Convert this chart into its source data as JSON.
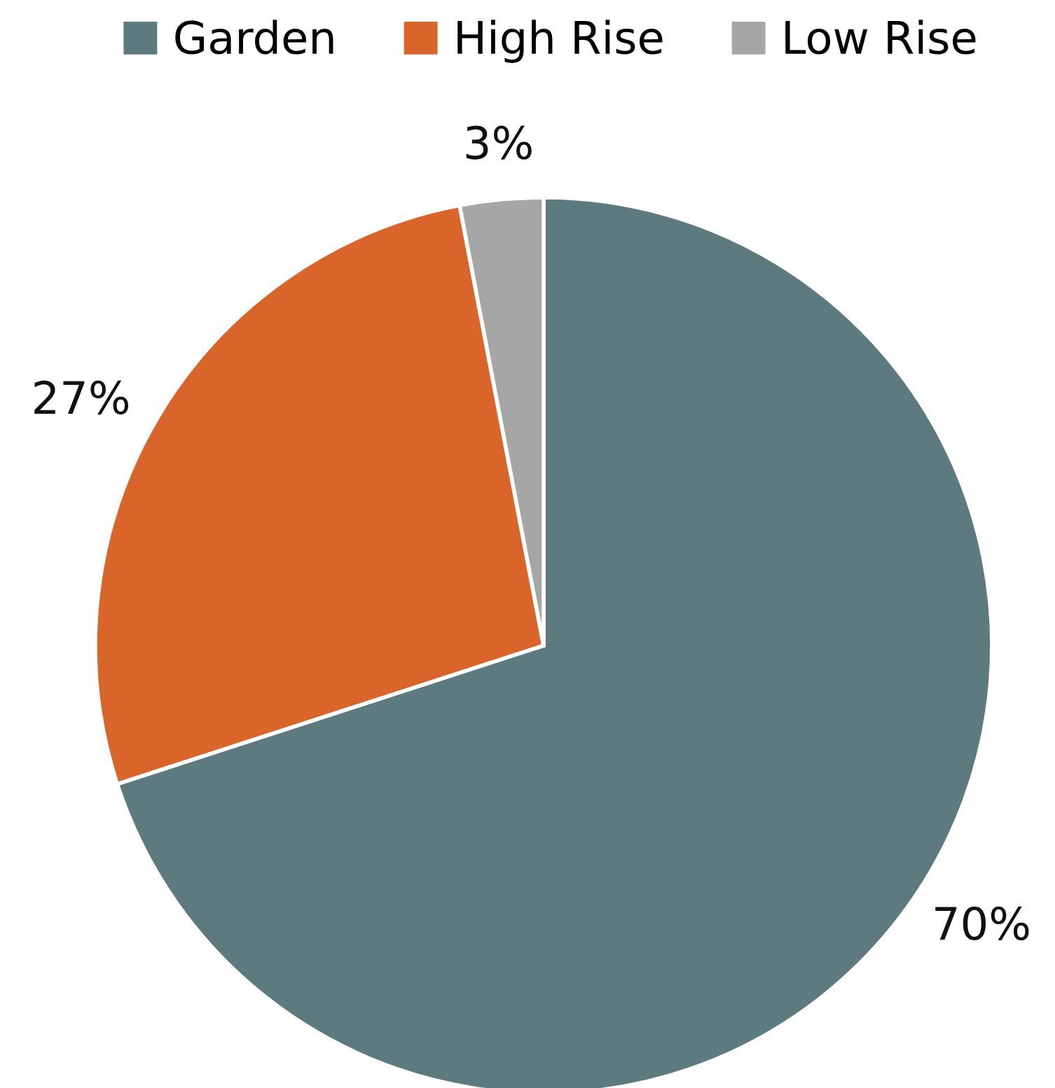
{
  "chart_data": {
    "type": "pie",
    "categories": [
      "Garden",
      "High Rise",
      "Low Rise"
    ],
    "values": [
      70,
      27,
      3
    ],
    "colors": [
      "#5d7b7f",
      "#d9652b",
      "#a6a6a6"
    ],
    "value_labels": [
      "70%",
      "27%",
      "3%"
    ],
    "legend": "top"
  }
}
